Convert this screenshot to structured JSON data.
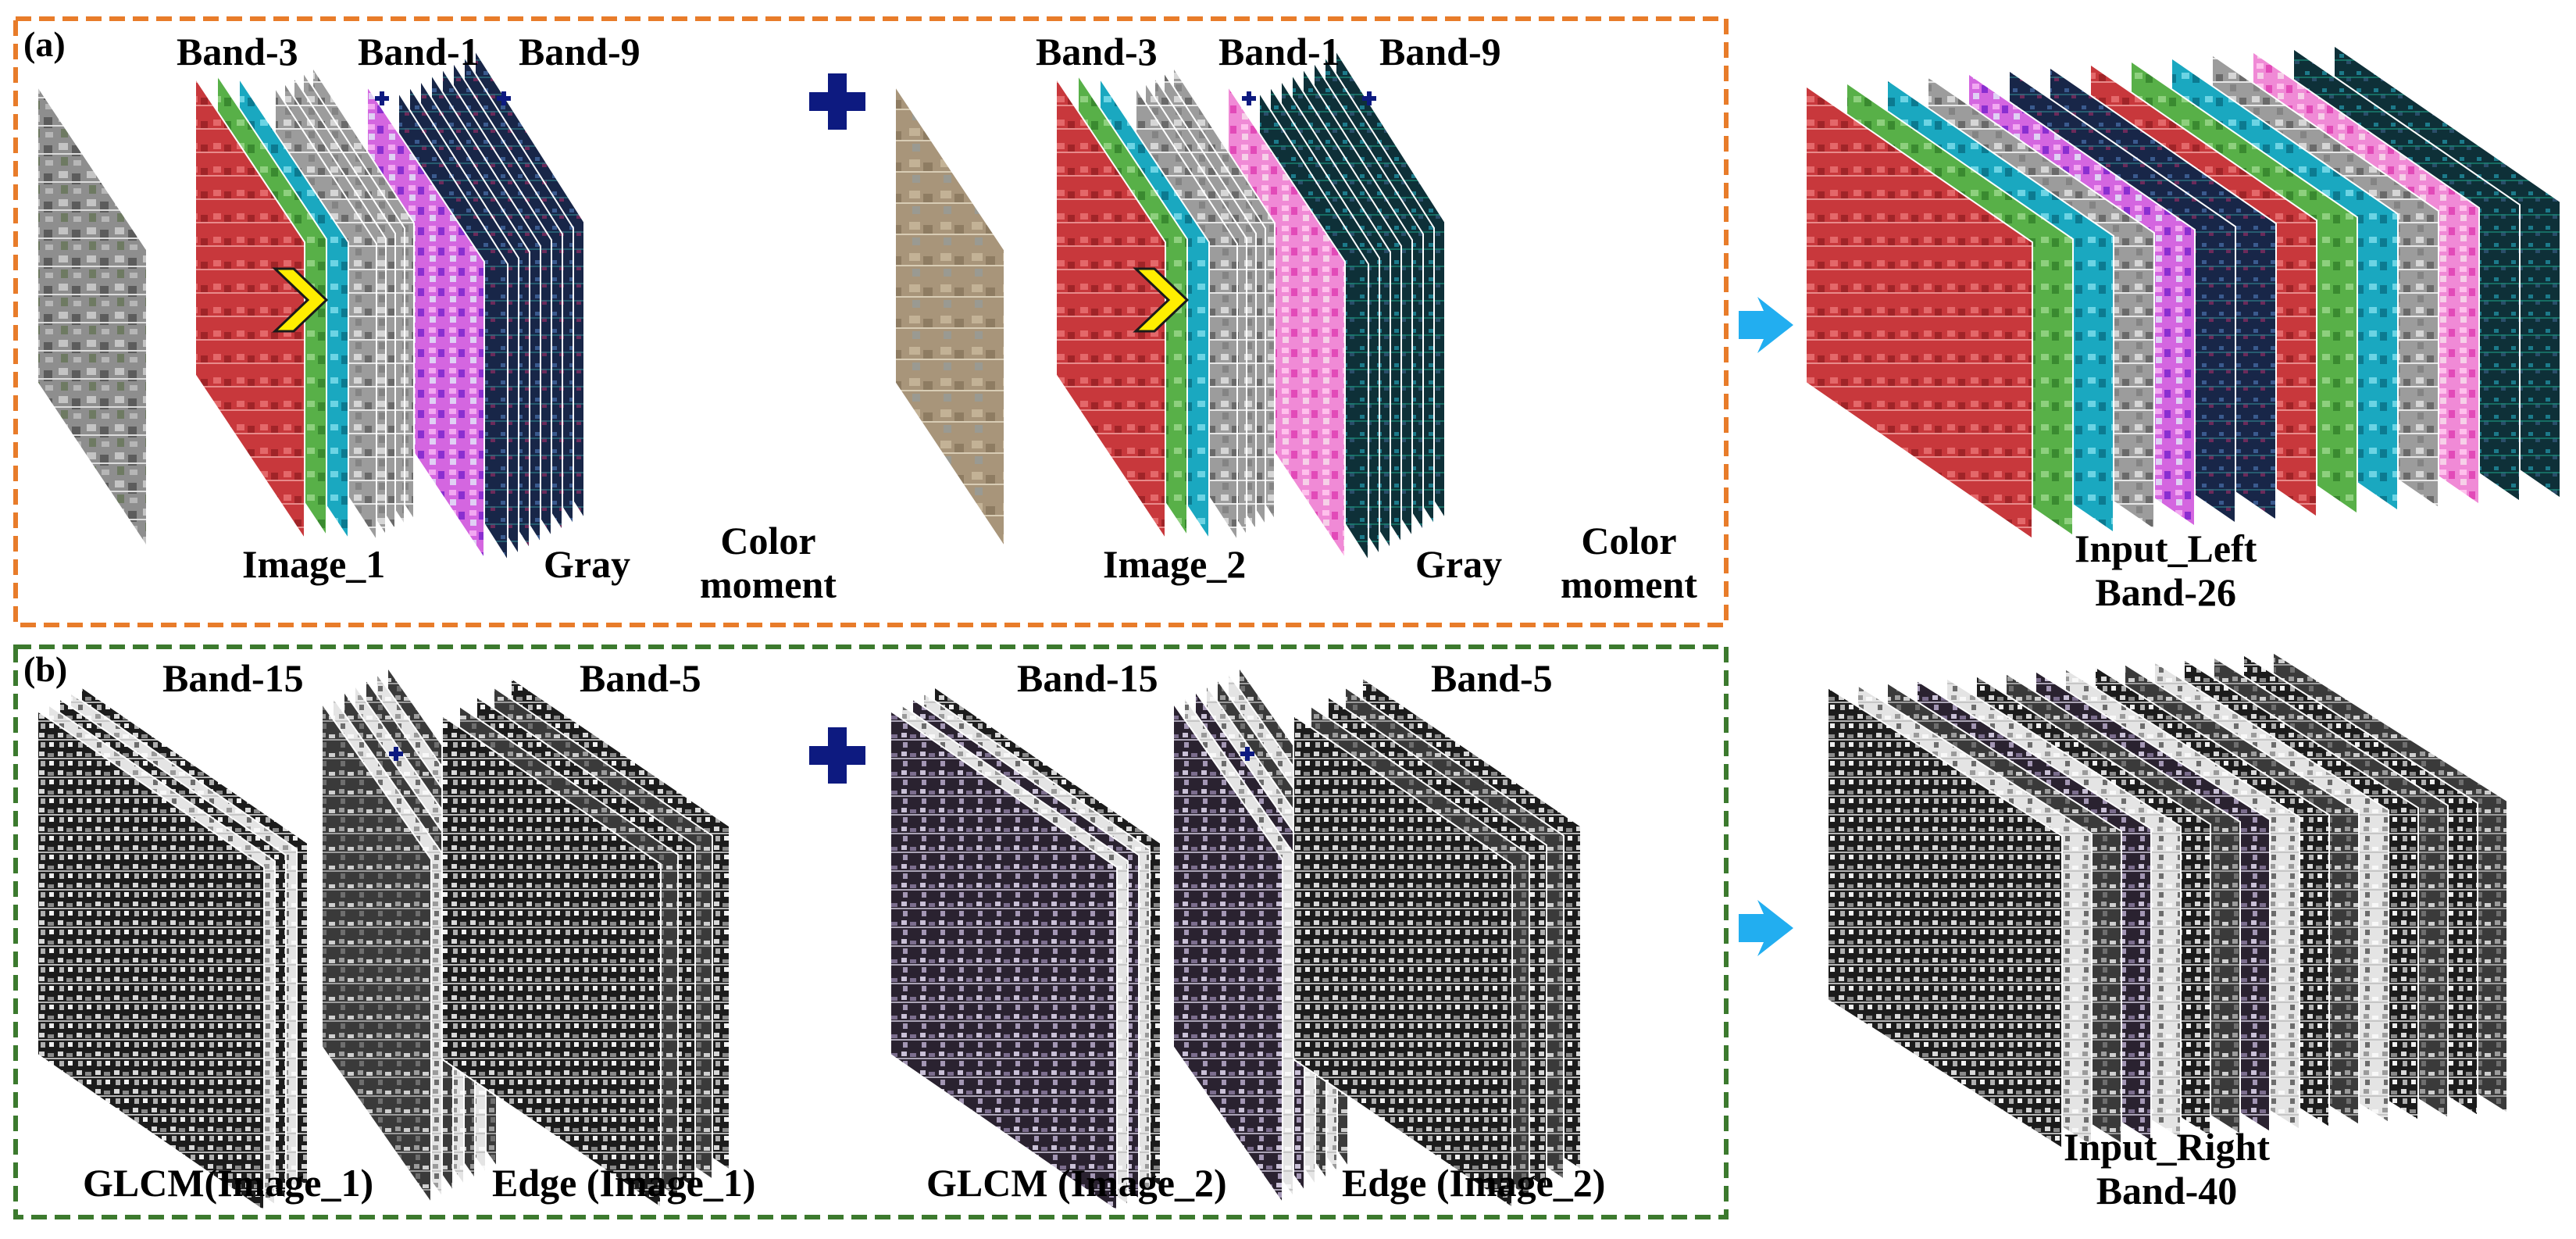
{
  "panel_a": {
    "tag": "(a)",
    "group1": {
      "band_3": "Band-3",
      "band_1": "Band-1",
      "band_9": "Band-9",
      "image": "Image_1",
      "gray": "Gray",
      "color_line1": "Color",
      "color_line2": "moment"
    },
    "group2": {
      "band_3": "Band-3",
      "band_1": "Band-1",
      "band_9": "Band-9",
      "image": "Image_2",
      "gray": "Gray",
      "color_line1": "Color",
      "color_line2": "moment"
    },
    "output_line1": "Input_Left",
    "output_line2": "Band-26"
  },
  "panel_b": {
    "tag": "(b)",
    "group1": {
      "glcm_bands": "Band-15",
      "edge_bands": "Band-5",
      "glcm_label": "GLCM(Image_1)",
      "edge_label": "Edge (Image_1)"
    },
    "group2": {
      "glcm_bands": "Band-15",
      "edge_bands": "Band-5",
      "glcm_label": "GLCM (Image_2)",
      "edge_label": "Edge (Image_2)"
    },
    "output_line1": "Input_Right",
    "output_line2": "Band-40"
  },
  "colors": {
    "panel_a_border": "#e87c2a",
    "panel_b_border": "#3c7a2e",
    "plus": "#0d1a80",
    "arrow": "#22aef0",
    "chevron": "#ffee00",
    "red_band": "#c8383c",
    "green_band": "#58b048",
    "cyan_band": "#1aa8c0",
    "magenta_band": "#e070e0",
    "navy_band": "#1a2a55"
  }
}
